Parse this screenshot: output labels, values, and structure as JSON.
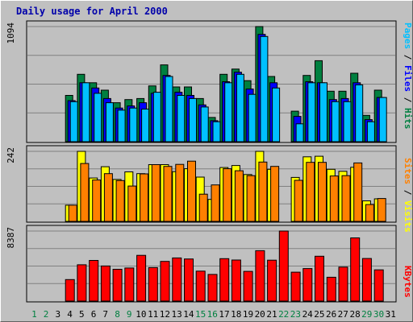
{
  "title": "Daily usage for April 2000",
  "colors": {
    "background": "#c0c0c0",
    "hits": "#008040",
    "files": "#0000ff",
    "pages": "#00c0ff",
    "visits": "#ffff00",
    "sites": "#ff8000",
    "kbytes": "#ff0000",
    "weekend_day_label": "#008040",
    "weekday_label": "#000000",
    "gridline": "#808080"
  },
  "panels": {
    "hits_files_pages": {
      "max_label": "1094",
      "legend": [
        {
          "text": "Pages",
          "color": "#00c0ff"
        },
        {
          "text": "/",
          "color": "#000000"
        },
        {
          "text": "Files",
          "color": "#0000ff"
        },
        {
          "text": "/",
          "color": "#000000"
        },
        {
          "text": "Hits",
          "color": "#008040"
        }
      ]
    },
    "visits_sites": {
      "max_label": "242",
      "legend": [
        {
          "text": "Sites",
          "color": "#ff8000"
        },
        {
          "text": "/",
          "color": "#000000"
        },
        {
          "text": "Visits",
          "color": "#ffff00"
        }
      ]
    },
    "kbytes": {
      "max_label": "8387",
      "legend": [
        {
          "text": "KBytes",
          "color": "#ff0000"
        }
      ]
    }
  },
  "chart_data": [
    {
      "type": "bar",
      "title": "Daily usage for April 2000",
      "ylabel": "Pages / Files / Hits",
      "ylim": [
        0,
        1094
      ],
      "grid": true,
      "categories": [
        "1",
        "2",
        "3",
        "4",
        "5",
        "6",
        "7",
        "8",
        "9",
        "10",
        "11",
        "12",
        "13",
        "14",
        "15",
        "16",
        "17",
        "18",
        "19",
        "20",
        "21",
        "22",
        "23",
        "24",
        "25",
        "26",
        "27",
        "28",
        "29",
        "30",
        "31"
      ],
      "series": [
        {
          "name": "Hits",
          "values": [
            null,
            null,
            null,
            440,
            640,
            560,
            490,
            370,
            400,
            410,
            530,
            730,
            520,
            520,
            410,
            230,
            640,
            690,
            580,
            1094,
            620,
            null,
            290,
            630,
            770,
            480,
            480,
            650,
            250,
            490,
            null
          ]
        },
        {
          "name": "Files",
          "values": [
            null,
            null,
            null,
            390,
            560,
            510,
            410,
            320,
            340,
            370,
            460,
            630,
            470,
            440,
            350,
            200,
            570,
            660,
            500,
            1020,
            560,
            null,
            240,
            570,
            560,
            400,
            410,
            560,
            210,
            420,
            null
          ]
        },
        {
          "name": "Pages",
          "values": [
            null,
            null,
            null,
            380,
            560,
            460,
            370,
            300,
            320,
            310,
            470,
            620,
            440,
            410,
            330,
            190,
            560,
            640,
            450,
            1000,
            510,
            null,
            170,
            560,
            560,
            380,
            380,
            540,
            190,
            420,
            null
          ]
        }
      ]
    },
    {
      "type": "bar",
      "ylabel": "Sites / Visits",
      "ylim": [
        0,
        242
      ],
      "grid": true,
      "categories": [
        "1",
        "2",
        "3",
        "4",
        "5",
        "6",
        "7",
        "8",
        "9",
        "10",
        "11",
        "12",
        "13",
        "14",
        "15",
        "16",
        "17",
        "18",
        "19",
        "20",
        "21",
        "22",
        "23",
        "24",
        "25",
        "26",
        "27",
        "28",
        "29",
        "30",
        "31"
      ],
      "series": [
        {
          "name": "Visits",
          "values": [
            null,
            null,
            null,
            56,
            242,
            150,
            189,
            145,
            171,
            165,
            196,
            196,
            172,
            182,
            153,
            76,
            186,
            193,
            162,
            242,
            180,
            null,
            152,
            223,
            225,
            180,
            173,
            187,
            71,
            78,
            null
          ]
        },
        {
          "name": "Sites",
          "values": [
            null,
            null,
            null,
            56,
            200,
            143,
            165,
            141,
            122,
            164,
            196,
            190,
            197,
            208,
            94,
            126,
            182,
            175,
            158,
            205,
            190,
            null,
            142,
            204,
            204,
            157,
            158,
            202,
            58,
            79,
            null
          ]
        }
      ]
    },
    {
      "type": "bar",
      "ylabel": "KBytes",
      "ylim": [
        0,
        8387
      ],
      "grid": true,
      "categories": [
        "1",
        "2",
        "3",
        "4",
        "5",
        "6",
        "7",
        "8",
        "9",
        "10",
        "11",
        "12",
        "13",
        "14",
        "15",
        "16",
        "17",
        "18",
        "19",
        "20",
        "21",
        "22",
        "23",
        "24",
        "25",
        "26",
        "27",
        "28",
        "29",
        "30",
        "31"
      ],
      "series": [
        {
          "name": "KBytes",
          "values": [
            null,
            null,
            null,
            2570,
            4350,
            4870,
            4200,
            3810,
            3960,
            5480,
            4010,
            4750,
            5170,
            5040,
            3590,
            3190,
            5080,
            4920,
            3560,
            6030,
            4900,
            8387,
            3460,
            3890,
            5370,
            2850,
            4070,
            7570,
            5100,
            3740,
            null
          ]
        }
      ]
    }
  ],
  "days": [
    {
      "label": "1",
      "weekend": true
    },
    {
      "label": "2",
      "weekend": true
    },
    {
      "label": "3",
      "weekend": false
    },
    {
      "label": "4",
      "weekend": false
    },
    {
      "label": "5",
      "weekend": false
    },
    {
      "label": "6",
      "weekend": false
    },
    {
      "label": "7",
      "weekend": false
    },
    {
      "label": "8",
      "weekend": true
    },
    {
      "label": "9",
      "weekend": true
    },
    {
      "label": "10",
      "weekend": false
    },
    {
      "label": "11",
      "weekend": false
    },
    {
      "label": "12",
      "weekend": false
    },
    {
      "label": "13",
      "weekend": false
    },
    {
      "label": "14",
      "weekend": false
    },
    {
      "label": "15",
      "weekend": true
    },
    {
      "label": "16",
      "weekend": true
    },
    {
      "label": "17",
      "weekend": false
    },
    {
      "label": "18",
      "weekend": false
    },
    {
      "label": "19",
      "weekend": false
    },
    {
      "label": "20",
      "weekend": false
    },
    {
      "label": "21",
      "weekend": false
    },
    {
      "label": "22",
      "weekend": true
    },
    {
      "label": "23",
      "weekend": true
    },
    {
      "label": "24",
      "weekend": false
    },
    {
      "label": "25",
      "weekend": false
    },
    {
      "label": "26",
      "weekend": false
    },
    {
      "label": "27",
      "weekend": false
    },
    {
      "label": "28",
      "weekend": false
    },
    {
      "label": "29",
      "weekend": true
    },
    {
      "label": "30",
      "weekend": true
    },
    {
      "label": "31",
      "weekend": false
    }
  ]
}
